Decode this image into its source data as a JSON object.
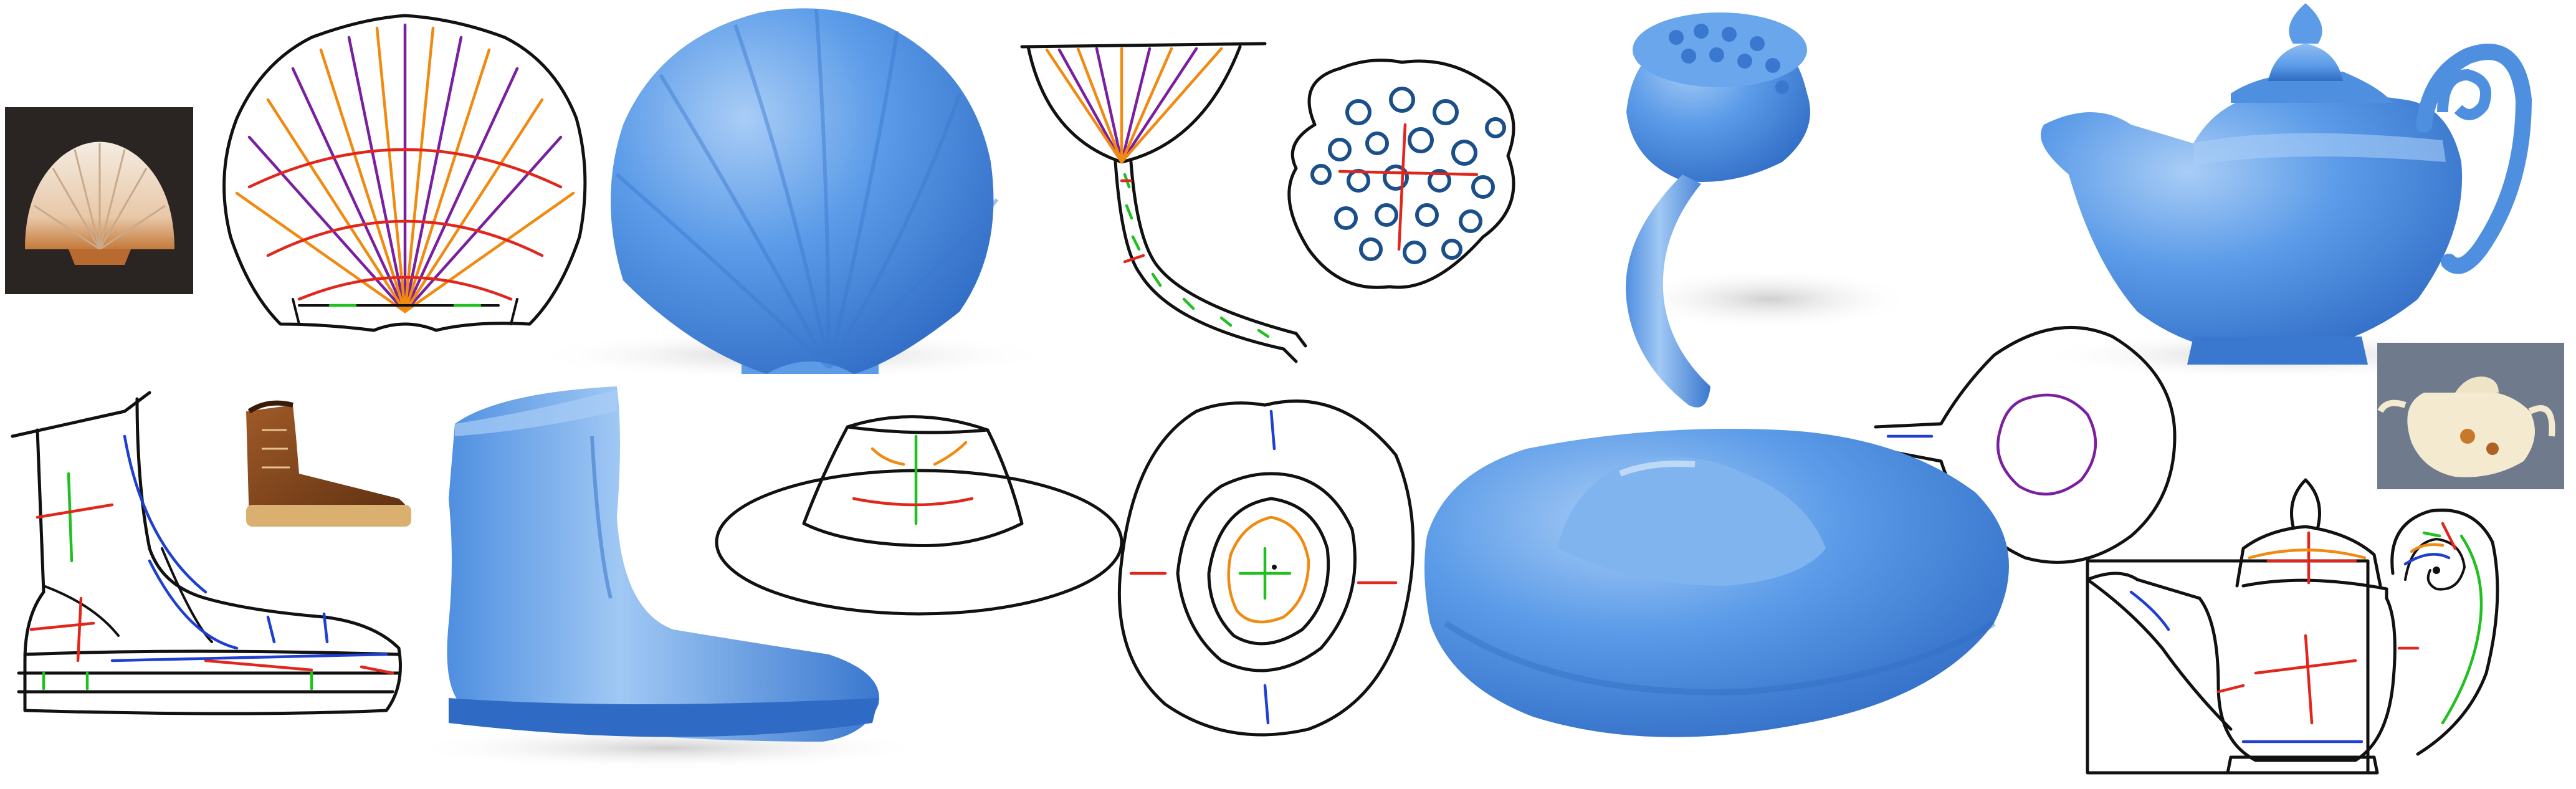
{
  "colors": {
    "model_blue": "#5b9be8",
    "model_blue_dark": "#3a78cf",
    "model_blue_light": "#a9cdf6",
    "stroke_black": "#111111",
    "stroke_red": "#e1261c",
    "stroke_green": "#20c020",
    "stroke_blue": "#1f3fd0",
    "stroke_orange": "#f08a10",
    "stroke_purple": "#7a1fa0",
    "stroke_navy": "#1a4f8a",
    "shadow": "#d9d9d9"
  },
  "panels": [
    {
      "name": "shell",
      "items": [
        "photo",
        "sketch",
        "model"
      ]
    },
    {
      "name": "boot",
      "items": [
        "sketch",
        "photo",
        "model"
      ]
    },
    {
      "name": "lotus",
      "items": [
        "side-sketch",
        "top-sketch",
        "model"
      ]
    },
    {
      "name": "hat",
      "items": [
        "front-sketch",
        "top-sketch",
        "model"
      ]
    },
    {
      "name": "teapot",
      "items": [
        "top-sketch",
        "side-sketch",
        "photo",
        "model"
      ]
    }
  ]
}
